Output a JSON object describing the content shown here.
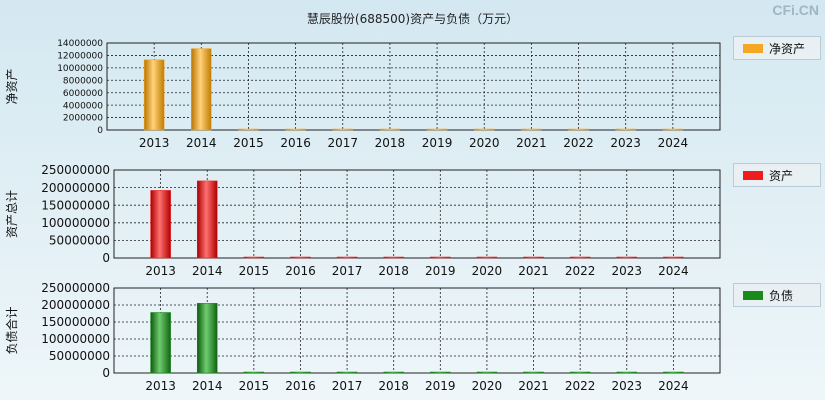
{
  "title": "慧辰股份(688500)资产与负债（万元）",
  "watermark": "CFi.CN",
  "chart_data": [
    {
      "type": "bar",
      "ylabel": "净资产",
      "categories": [
        "2013",
        "2014",
        "2015",
        "2016",
        "2017",
        "2018",
        "2019",
        "2020",
        "2021",
        "2022",
        "2023",
        "2024"
      ],
      "series": [
        {
          "name": "净资产",
          "color": "#f5a623",
          "values": [
            11300000,
            13100000,
            150000,
            150000,
            150000,
            150000,
            150000,
            150000,
            150000,
            150000,
            150000,
            150000
          ]
        }
      ],
      "ylim": [
        0,
        14000000
      ],
      "yticks": [
        "0",
        "2000000",
        "4000000",
        "6000000",
        "8000000",
        "10000000",
        "12000000",
        "14000000"
      ],
      "legend_position": "right",
      "grid": true
    },
    {
      "type": "bar",
      "ylabel": "资产总计",
      "categories": [
        "2013",
        "2014",
        "2015",
        "2016",
        "2017",
        "2018",
        "2019",
        "2020",
        "2021",
        "2022",
        "2023",
        "2024"
      ],
      "series": [
        {
          "name": "资产",
          "color": "#ee1c1c",
          "values": [
            192000000,
            219000000,
            2000000,
            2000000,
            2000000,
            2000000,
            2000000,
            2000000,
            2000000,
            2000000,
            2000000,
            2000000
          ]
        }
      ],
      "ylim": [
        0,
        250000000
      ],
      "yticks": [
        "0",
        "50000000",
        "100000000",
        "150000000",
        "200000000",
        "250000000"
      ],
      "legend_position": "right",
      "grid": true
    },
    {
      "type": "bar",
      "ylabel": "负债合计",
      "categories": [
        "2013",
        "2014",
        "2015",
        "2016",
        "2017",
        "2018",
        "2019",
        "2020",
        "2021",
        "2022",
        "2023",
        "2024"
      ],
      "series": [
        {
          "name": "负债",
          "color": "#1a8a1a",
          "values": [
            178000000,
            205000000,
            1500000,
            1500000,
            1500000,
            1500000,
            1500000,
            1500000,
            1500000,
            1500000,
            1500000,
            1500000
          ]
        }
      ],
      "ylim": [
        0,
        250000000
      ],
      "yticks": [
        "0",
        "50000000",
        "100000000",
        "150000000",
        "200000000",
        "250000000"
      ],
      "legend_position": "right",
      "grid": true
    }
  ]
}
